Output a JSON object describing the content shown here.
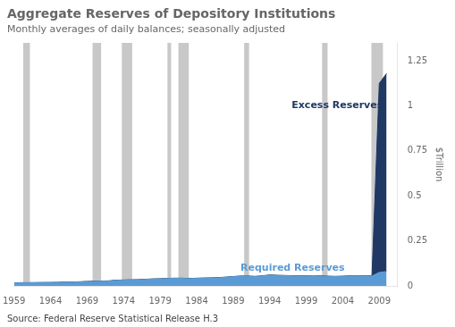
{
  "chart_data": {
    "type": "area",
    "stacked": true,
    "title": "Aggregate Reserves of Depository Institutions",
    "subtitle": "Monthly averages of daily balances; seasonally adjusted",
    "ylabel": "$Trillion",
    "source": "Source: Federal Reserve Statistical Release H.3",
    "grid": false,
    "xlim": [
      1959,
      2011.5
    ],
    "xticks": [
      1959,
      1964,
      1969,
      1974,
      1979,
      1984,
      1989,
      1994,
      1999,
      2004,
      2009
    ],
    "ylim": [
      0,
      1.35
    ],
    "yticks": [
      0,
      0.25,
      0.5,
      0.75,
      1,
      1.25
    ],
    "x": [
      1959,
      1960,
      1961,
      1962,
      1963,
      1964,
      1965,
      1966,
      1967,
      1968,
      1969,
      1970,
      1971,
      1972,
      1973,
      1974,
      1975,
      1976,
      1977,
      1978,
      1979,
      1980,
      1981,
      1982,
      1983,
      1984,
      1985,
      1986,
      1987,
      1988,
      1989,
      1990,
      1991,
      1992,
      1993,
      1994,
      1995,
      1996,
      1997,
      1998,
      1999,
      2000,
      2001,
      2002,
      2003,
      2004,
      2005,
      2006,
      2007,
      2008,
      2009,
      2010
    ],
    "series": [
      {
        "name": "Required Reserves",
        "color": "#5b9bd5",
        "values": [
          0.0165,
          0.0168,
          0.017,
          0.0175,
          0.018,
          0.0183,
          0.019,
          0.0205,
          0.021,
          0.022,
          0.024,
          0.025,
          0.026,
          0.027,
          0.031,
          0.032,
          0.033,
          0.034,
          0.036,
          0.038,
          0.039,
          0.041,
          0.042,
          0.042,
          0.04,
          0.042,
          0.043,
          0.044,
          0.045,
          0.048,
          0.051,
          0.054,
          0.054,
          0.052,
          0.055,
          0.06,
          0.058,
          0.057,
          0.056,
          0.055,
          0.055,
          0.054,
          0.055,
          0.053,
          0.052,
          0.053,
          0.055,
          0.056,
          0.055,
          0.055,
          0.075,
          0.08
        ]
      },
      {
        "name": "Excess Reserves",
        "color": "#1f3864",
        "values": [
          0.001,
          0.001,
          0.001,
          0.001,
          0.001,
          0.001,
          0.001,
          0.001,
          0.001,
          0.001,
          0.001,
          0.001,
          0.001,
          0.001,
          0.001,
          0.001,
          0.001,
          0.001,
          0.001,
          0.001,
          0.001,
          0.001,
          0.001,
          0.001,
          0.001,
          0.001,
          0.001,
          0.001,
          0.001,
          0.001,
          0.001,
          0.001,
          0.001,
          0.001,
          0.001,
          0.001,
          0.001,
          0.001,
          0.001,
          0.001,
          0.001,
          0.001,
          0.001,
          0.001,
          0.001,
          0.001,
          0.001,
          0.001,
          0.001,
          0.001,
          1.05,
          1.1
        ]
      }
    ],
    "recession_bands": [
      [
        1960.25,
        1961.17
      ],
      [
        1969.75,
        1970.92
      ],
      [
        1973.75,
        1975.17
      ],
      [
        1980.0,
        1980.5
      ],
      [
        1981.5,
        1982.92
      ],
      [
        1990.5,
        1991.17
      ],
      [
        2001.17,
        2001.92
      ],
      [
        2007.92,
        2009.5
      ]
    ],
    "recession_color": "#c8c8c8",
    "annotations": [
      {
        "text": "Excess Reserves",
        "x": 1997,
        "y": 1.0,
        "color": "#1f3864"
      },
      {
        "text": "Required Reserves",
        "x": 1990,
        "y": 0.1,
        "color": "#5b9bd5"
      }
    ]
  }
}
